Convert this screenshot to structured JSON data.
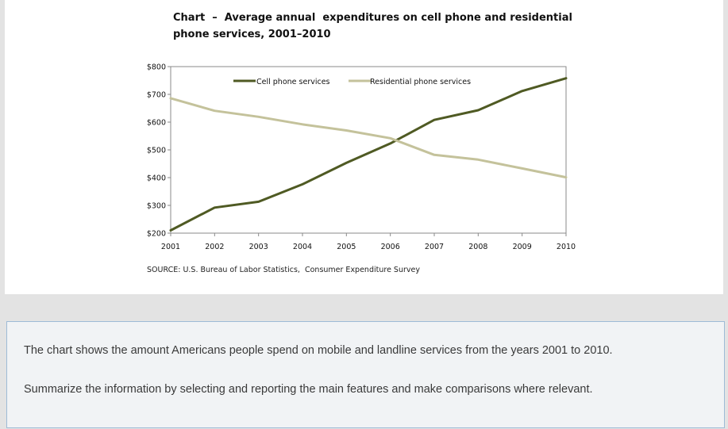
{
  "chart_data": {
    "type": "line",
    "title_lines": [
      "Chart  –  Average annual  expenditures on cell phone and residential",
      "phone services, 2001–2010"
    ],
    "xlabel": "",
    "ylabel": "",
    "categories": [
      "2001",
      "2002",
      "2003",
      "2004",
      "2005",
      "2006",
      "2007",
      "2008",
      "2009",
      "2010"
    ],
    "series": [
      {
        "name": "Cell phone services",
        "color": "#4f5a23",
        "values": [
          210,
          292,
          313,
          376,
          453,
          523,
          608,
          643,
          712,
          758
        ]
      },
      {
        "name": "Residential phone services",
        "color": "#c4c29b",
        "values": [
          686,
          641,
          619,
          592,
          570,
          542,
          482,
          465,
          433,
          401
        ]
      }
    ],
    "ylim": [
      200,
      800
    ],
    "yticks": [
      200,
      300,
      400,
      500,
      600,
      700,
      800
    ],
    "ytick_labels": [
      "$200",
      "$300",
      "$400",
      "$500",
      "$600",
      "$700",
      "$800"
    ],
    "legend": "top-center",
    "grid": false
  },
  "source": "SOURCE: U.S. Bureau of Labor Statistics,  Consumer Expenditure Survey",
  "task": {
    "line1": "The chart shows the amount Americans people spend on mobile and landline services from the years 2001 to 2010.",
    "line2": "Summarize the information by selecting and reporting the main features and make comparisons where relevant."
  }
}
